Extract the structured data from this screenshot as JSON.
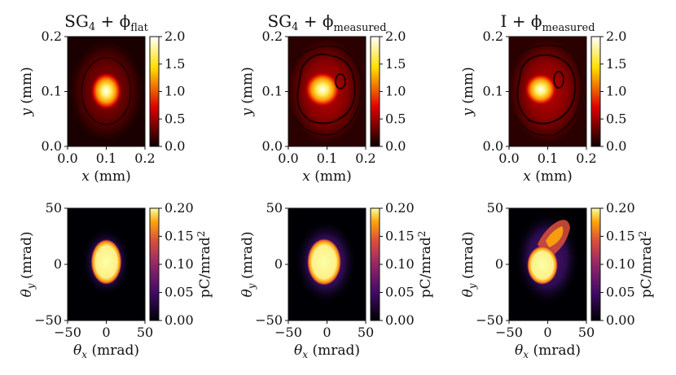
{
  "figure": {
    "top_row_colorbar_ticks": [
      "0.0",
      "0.5",
      "1.0",
      "1.5",
      "2.0"
    ],
    "bottom_row_colorbar_ticks": [
      "0.00",
      "0.05",
      "0.10",
      "0.15",
      "0.20"
    ],
    "bottom_colorbar_label": {
      "base": "pC/mrad",
      "sup": "2"
    }
  },
  "chart_data": [
    {
      "type": "heatmap",
      "panel": "top-left",
      "title": {
        "base": "SG",
        "sub": "4",
        "op": " + ϕ",
        "phi_sub": "flat"
      },
      "xlabel": {
        "var": "x",
        "unit": " (mm)"
      },
      "ylabel": {
        "var": "y",
        "unit": " (mm)"
      },
      "xticks": [
        "0.0",
        "0.1",
        "0.2"
      ],
      "yticks": [
        "0.0",
        "0.1",
        "0.2"
      ],
      "xlim": [
        0,
        0.2
      ],
      "ylim": [
        0,
        0.2
      ],
      "colormap": "hot",
      "clim": [
        0,
        2.0
      ],
      "peak_center": [
        0.1,
        0.1
      ],
      "peak_value": 2.0,
      "description_values": {
        "core_radius_mm": 0.02,
        "ring_value": 0.2
      }
    },
    {
      "type": "heatmap",
      "panel": "top-middle",
      "title": {
        "base": "SG",
        "sub": "4",
        "op": " + ϕ",
        "phi_sub": "measured"
      },
      "xlabel": {
        "var": "x",
        "unit": " (mm)"
      },
      "ylabel": {
        "var": "y",
        "unit": " (mm)"
      },
      "xticks": [
        "0.0",
        "0.1",
        "0.2"
      ],
      "yticks": [
        "0.0",
        "0.1",
        "0.2"
      ],
      "xlim": [
        0,
        0.2
      ],
      "ylim": [
        0,
        0.2
      ],
      "colormap": "hot",
      "clim": [
        0,
        2.0
      ],
      "peak_center": [
        0.095,
        0.105
      ],
      "peak_value": 1.9,
      "description_values": {
        "core_radius_mm": 0.025,
        "ring_value": 0.6
      }
    },
    {
      "type": "heatmap",
      "panel": "top-right",
      "title": {
        "base": "I",
        "sub": "",
        "op": " + ϕ",
        "phi_sub": "measured"
      },
      "xlabel": {
        "var": "x",
        "unit": " (mm)"
      },
      "ylabel": {
        "var": "y",
        "unit": " (mm)"
      },
      "xticks": [
        "0.0",
        "0.1",
        "0.2"
      ],
      "yticks": [
        "0.0",
        "0.1",
        "0.2"
      ],
      "xlim": [
        0,
        0.2
      ],
      "ylim": [
        0,
        0.2
      ],
      "colormap": "hot",
      "clim": [
        0,
        2.0
      ],
      "peak_center": [
        0.09,
        0.1
      ],
      "peak_value": 1.95,
      "description_values": {
        "core_radius_mm": 0.022,
        "ring_value": 0.7
      }
    },
    {
      "type": "heatmap",
      "panel": "bottom-left",
      "xlabel": {
        "var": "θ",
        "sub": "x",
        "unit": " (mrad)"
      },
      "ylabel": {
        "var": "θ",
        "sub": "y",
        "unit": " (mrad)"
      },
      "xticks": [
        "−50",
        "0",
        "50"
      ],
      "yticks": [
        "−50",
        "0",
        "50"
      ],
      "xlim": [
        -50,
        50
      ],
      "ylim": [
        -50,
        50
      ],
      "colormap": "inferno",
      "clim": [
        0,
        0.2
      ],
      "peak_center": [
        0,
        0
      ],
      "peak_value": 0.2,
      "description_values": {
        "core_semi_axes_mrad": [
          12,
          17
        ]
      }
    },
    {
      "type": "heatmap",
      "panel": "bottom-middle",
      "xlabel": {
        "var": "θ",
        "sub": "x",
        "unit": " (mrad)"
      },
      "ylabel": {
        "var": "θ",
        "sub": "y",
        "unit": " (mrad)"
      },
      "xticks": [
        "−50",
        "0",
        "50"
      ],
      "yticks": [
        "−50",
        "0",
        "50"
      ],
      "xlim": [
        -50,
        50
      ],
      "ylim": [
        -50,
        50
      ],
      "colormap": "inferno",
      "clim": [
        0,
        0.2
      ],
      "peak_center": [
        -3,
        0
      ],
      "peak_value": 0.2,
      "description_values": {
        "core_semi_axes_mrad": [
          13,
          17
        ]
      }
    },
    {
      "type": "heatmap",
      "panel": "bottom-right",
      "xlabel": {
        "var": "θ",
        "sub": "x",
        "unit": " (mrad)"
      },
      "ylabel": {
        "var": "θ",
        "sub": "y",
        "unit": " (mrad)"
      },
      "xticks": [
        "−50",
        "0",
        "50"
      ],
      "yticks": [
        "−50",
        "0",
        "50"
      ],
      "xlim": [
        -50,
        50
      ],
      "ylim": [
        -50,
        50
      ],
      "colormap": "inferno",
      "clim": [
        0,
        0.2
      ],
      "peak_center": [
        -5,
        0
      ],
      "peak_value": 0.2,
      "description_values": {
        "core_semi_axes_mrad": [
          13,
          18
        ],
        "tail_toward_mrad": [
          15,
          30
        ]
      }
    }
  ]
}
